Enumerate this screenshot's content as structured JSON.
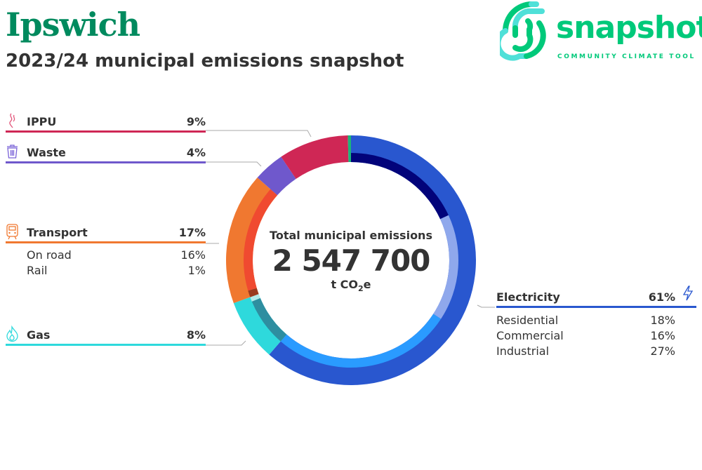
{
  "header": {
    "city": "Ipswich",
    "subtitle": "2023/24 municipal emissions snapshot"
  },
  "logo": {
    "word": "snapshot",
    "tagline": "COMMUNITY CLIMATE TOOL",
    "colors": [
      "#00c97a",
      "#4fe0d8"
    ]
  },
  "center": {
    "label": "Total municipal emissions",
    "value": "2 547 700",
    "unit_prefix": "t CO",
    "unit_sub": "2",
    "unit_suffix": "e"
  },
  "chart_data": {
    "type": "pie",
    "title": "Total municipal emissions",
    "total": 2547700,
    "unit": "t CO2e",
    "sectors": [
      {
        "name": "Electricity",
        "pct_label": "61%",
        "value": 61,
        "color": "#2957cf",
        "icon": "lightning-icon",
        "subsectors": [
          {
            "name": "Residential",
            "pct_label": "18%",
            "value": 18,
            "color": "#02037a"
          },
          {
            "name": "Commercial",
            "pct_label": "16%",
            "value": 16,
            "color": "#8fa8ec"
          },
          {
            "name": "Industrial",
            "pct_label": "27%",
            "value": 27,
            "color": "#2a9bff"
          }
        ]
      },
      {
        "name": "Gas",
        "pct_label": "8%",
        "value": 8,
        "color": "#2ed9dc",
        "icon": "flame-icon",
        "inner": [
          {
            "value": 7.3,
            "color": "#2e8ea0"
          },
          {
            "value": 0.7,
            "color": "#b3eaea"
          }
        ]
      },
      {
        "name": "Transport",
        "pct_label": "17%",
        "value": 17,
        "color": "#f07830",
        "icon": "train-icon",
        "subsectors": [
          {
            "name": "On road",
            "pct_label": "16%",
            "value": 16,
            "color": "#f04a30"
          },
          {
            "name": "Rail",
            "pct_label": "1%",
            "value": 1,
            "color": "#9a3a20"
          }
        ],
        "reverse_inner": true
      },
      {
        "name": "Waste",
        "pct_label": "4%",
        "value": 4,
        "color": "#6f58cc",
        "icon": "trash-icon"
      },
      {
        "name": "IPPU",
        "pct_label": "9%",
        "value": 9,
        "color": "#cf2755",
        "icon": "smoke-icon"
      },
      {
        "name": "",
        "value": 0.4,
        "color": "#1bb57a"
      }
    ]
  }
}
